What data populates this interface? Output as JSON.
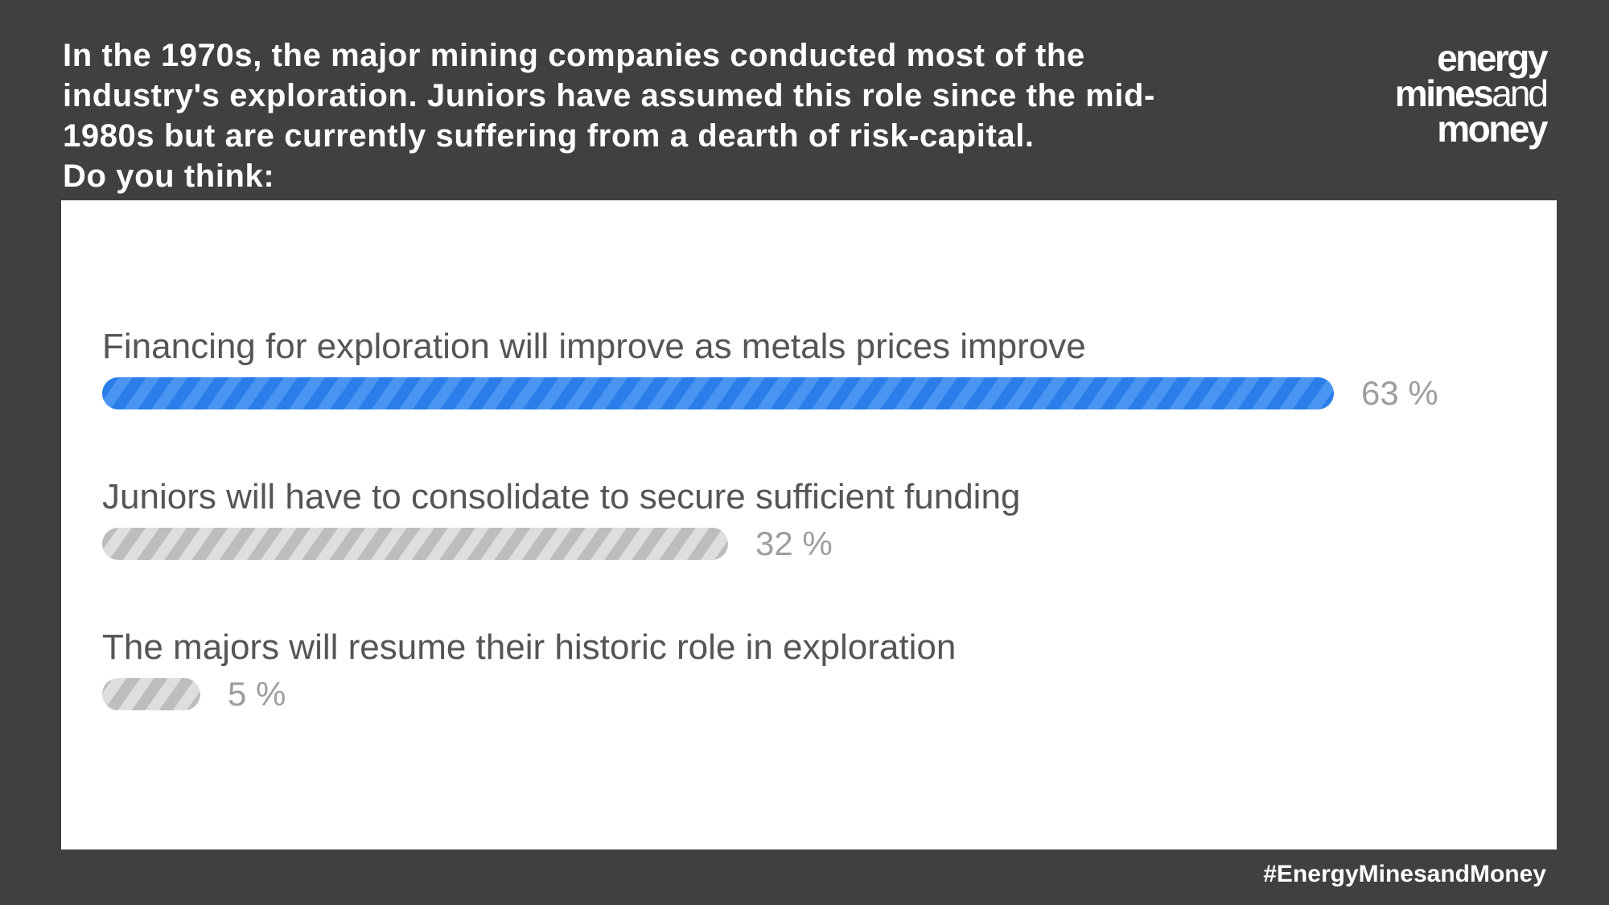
{
  "question": {
    "lines": [
      "In the 1970s, the major mining companies conducted most of the",
      "industry's exploration. Juniors have assumed this role since the mid-",
      "1980s but are currently suffering from a dearth of risk-capital.",
      "Do you think:"
    ]
  },
  "logo": {
    "line1": "energy",
    "line2a": "mines",
    "line2b": "and",
    "line3": "money"
  },
  "poll": {
    "options": [
      {
        "label": "Financing for exploration will improve as metals prices improve",
        "percent_label": "63 %",
        "percent": 63,
        "leading": true
      },
      {
        "label": "Juniors will have to consolidate to secure sufficient funding",
        "percent_label": "32 %",
        "percent": 32,
        "leading": false
      },
      {
        "label": "The majors will resume their historic role in exploration",
        "percent_label": "5 %",
        "percent": 5,
        "leading": false
      }
    ]
  },
  "colors": {
    "background": "#404043",
    "leading_bar": "#2b7de9",
    "other_bar": "#c4c4c4",
    "percent_text": "#9e9e9e",
    "label_text": "#555555"
  },
  "hashtag": "#EnergyMinesandMoney"
}
